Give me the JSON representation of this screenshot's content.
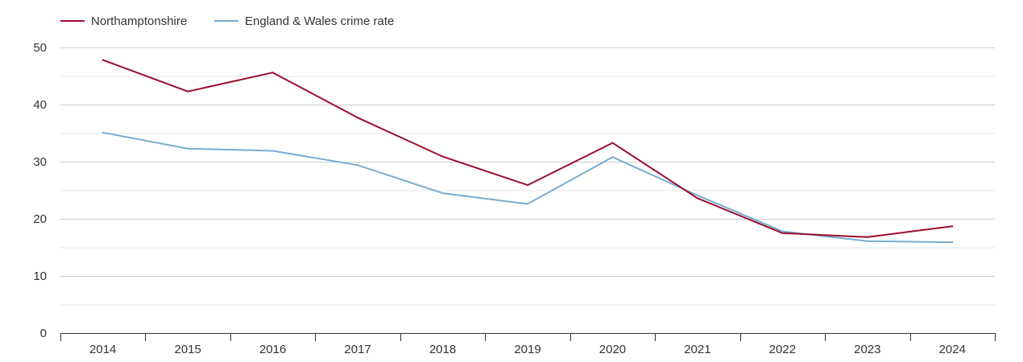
{
  "chart_data": {
    "type": "line",
    "title": "",
    "xlabel": "",
    "ylabel": "",
    "categories": [
      "2014",
      "2015",
      "2016",
      "2017",
      "2018",
      "2019",
      "2020",
      "2021",
      "2022",
      "2023",
      "2024"
    ],
    "ylim": [
      0,
      50
    ],
    "yticks": [
      "0",
      "10",
      "20",
      "30",
      "40",
      "50"
    ],
    "grid": true,
    "legend_placement": "top-left",
    "series": [
      {
        "name": "Northamptonshire",
        "color": "#9b0c2f",
        "values": [
          47.8,
          42.3,
          45.6,
          37.7,
          30.9,
          25.9,
          33.3,
          23.6,
          17.5,
          16.8,
          18.7
        ]
      },
      {
        "name": "England & Wales crime rate",
        "color": "#76adcf",
        "values": [
          35.1,
          32.3,
          31.9,
          29.4,
          24.5,
          22.6,
          30.8,
          24.1,
          17.8,
          16.1,
          15.9
        ]
      }
    ]
  }
}
